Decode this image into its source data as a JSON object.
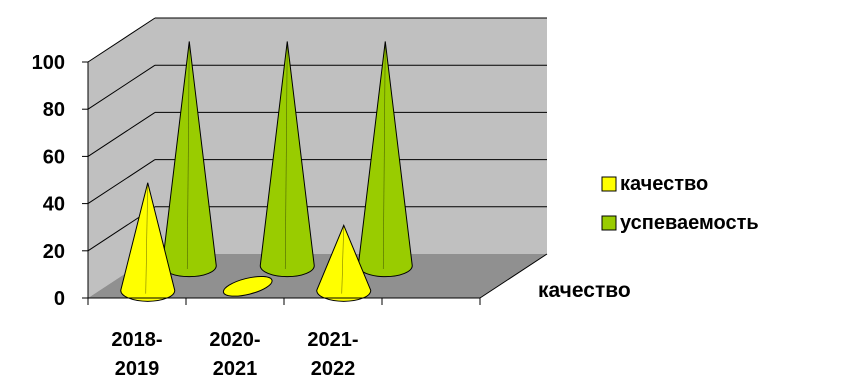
{
  "chart_data": {
    "type": "bar",
    "shape": "cone-3d",
    "categories": [
      [
        "2018-",
        "2019"
      ],
      [
        "2020-",
        "2021"
      ],
      [
        "2021-",
        "2022"
      ]
    ],
    "series": [
      {
        "name": "качество",
        "values": [
          48,
          0,
          29
        ],
        "color": "#ffff00"
      },
      {
        "name": "успеваемость",
        "values": [
          100,
          100,
          100
        ],
        "color": "#99cc00"
      }
    ],
    "yticks": [
      0,
      20,
      40,
      60,
      80,
      100
    ],
    "ylim": [
      0,
      100
    ],
    "depth_axis_label": "качество",
    "grid": true,
    "legend": "right",
    "wall_color": "#c0c0c0",
    "floor_color": "#909090"
  }
}
